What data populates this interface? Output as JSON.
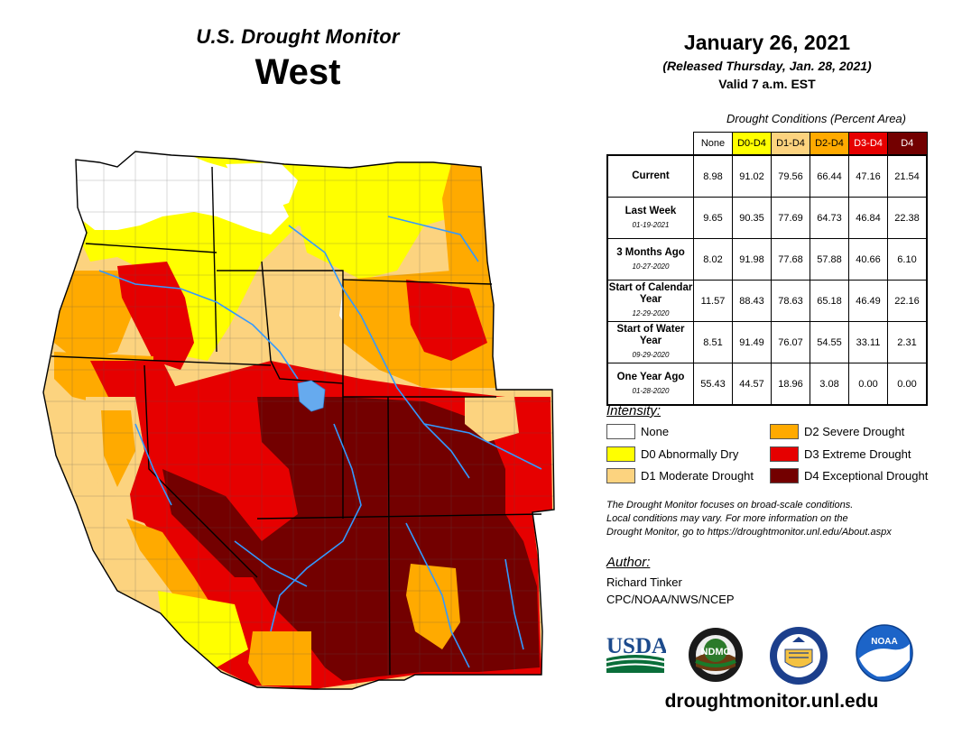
{
  "header": {
    "product": "U.S. Drought Monitor",
    "region": "West",
    "date": "January 26, 2021",
    "released": "(Released Thursday, Jan. 28, 2021)",
    "valid": "Valid 7 a.m. EST"
  },
  "table": {
    "caption": "Drought Conditions (Percent Area)",
    "columns": [
      {
        "label": "None",
        "color": "#ffffff",
        "text": "#000000"
      },
      {
        "label": "D0-D4",
        "color": "#ffff00",
        "text": "#000000"
      },
      {
        "label": "D1-D4",
        "color": "#fcd37f",
        "text": "#000000"
      },
      {
        "label": "D2-D4",
        "color": "#ffaa00",
        "text": "#000000"
      },
      {
        "label": "D3-D4",
        "color": "#e60000",
        "text": "#ffffff"
      },
      {
        "label": "D4",
        "color": "#730000",
        "text": "#ffffff"
      }
    ],
    "rows": [
      {
        "label": "Current",
        "date": "",
        "values": [
          "8.98",
          "91.02",
          "79.56",
          "66.44",
          "47.16",
          "21.54"
        ]
      },
      {
        "label": "Last Week",
        "date": "01-19-2021",
        "values": [
          "9.65",
          "90.35",
          "77.69",
          "64.73",
          "46.84",
          "22.38"
        ]
      },
      {
        "label": "3 Months Ago",
        "date": "10-27-2020",
        "values": [
          "8.02",
          "91.98",
          "77.68",
          "57.88",
          "40.66",
          "6.10"
        ]
      },
      {
        "label": "Start of Calendar Year",
        "date": "12-29-2020",
        "values": [
          "11.57",
          "88.43",
          "78.63",
          "65.18",
          "46.49",
          "22.16"
        ]
      },
      {
        "label": "Start of Water Year",
        "date": "09-29-2020",
        "values": [
          "8.51",
          "91.49",
          "76.07",
          "54.55",
          "33.11",
          "2.31"
        ]
      },
      {
        "label": "One Year Ago",
        "date": "01-28-2020",
        "values": [
          "55.43",
          "44.57",
          "18.96",
          "3.08",
          "0.00",
          "0.00"
        ]
      }
    ]
  },
  "intensity": {
    "title": "Intensity:",
    "items": [
      {
        "label": "None",
        "color": "#ffffff"
      },
      {
        "label": "D0 Abnormally Dry",
        "color": "#ffff00"
      },
      {
        "label": "D1 Moderate Drought",
        "color": "#fcd37f"
      },
      {
        "label": "D2 Severe Drought",
        "color": "#ffaa00"
      },
      {
        "label": "D3 Extreme Drought",
        "color": "#e60000"
      },
      {
        "label": "D4 Exceptional Drought",
        "color": "#730000"
      }
    ]
  },
  "note": {
    "line1": "The Drought Monitor focuses on broad-scale conditions.",
    "line2": "Local conditions may vary. For more information on the",
    "line3": "Drought Monitor, go to https://droughtmonitor.unl.edu/About.aspx"
  },
  "author": {
    "title": "Author:",
    "name": "Richard Tinker",
    "org": "CPC/NOAA/NWS/NCEP"
  },
  "logos": {
    "usda": "USDA",
    "ndmc": "NDMC",
    "noaa": "NOAA"
  },
  "footer_url": "droughtmonitor.unl.edu"
}
